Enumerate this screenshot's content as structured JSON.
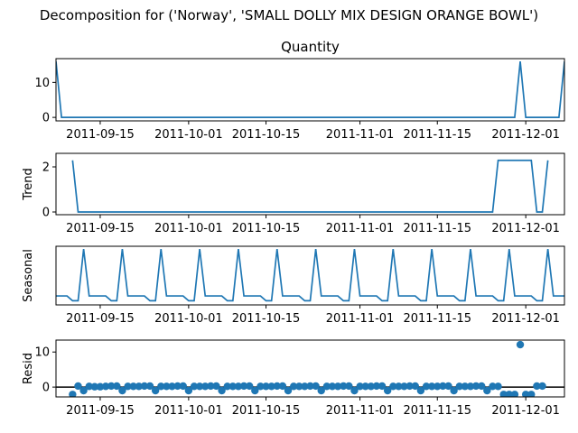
{
  "figure": {
    "suptitle": "Decomposition for ('Norway', 'SMALL DOLLY MIX DESIGN ORANGE BOWL')",
    "colors": {
      "series": "#1f77b4",
      "axis": "#000000",
      "zero_line": "#000000"
    }
  },
  "chart_data": [
    {
      "type": "line",
      "title": "Quantity",
      "ylabel": "",
      "ylim": [
        -1,
        16.8
      ],
      "yticks": [
        0,
        10
      ],
      "xtick_labels": [
        "2011-09-15",
        "2011-10-01",
        "2011-10-15",
        "2011-11-01",
        "2011-11-15",
        "2011-12-01"
      ],
      "xtick_dates": [
        "2011-09-15",
        "2011-10-01",
        "2011-10-15",
        "2011-11-01",
        "2011-11-15",
        "2011-12-01"
      ],
      "x": [
        "2011-09-07",
        "2011-09-08",
        "2011-11-29",
        "2011-11-30",
        "2011-12-01",
        "2011-12-07",
        "2011-12-08"
      ],
      "values": [
        16,
        0,
        0,
        16,
        0,
        0,
        16
      ]
    },
    {
      "type": "line",
      "title": "",
      "ylabel": "Trend",
      "ylim": [
        -0.12,
        2.6
      ],
      "yticks": [
        0,
        2
      ],
      "xtick_labels": [
        "2011-09-15",
        "2011-10-01",
        "2011-10-15",
        "2011-11-01",
        "2011-11-15",
        "2011-12-01"
      ],
      "xtick_dates": [
        "2011-09-15",
        "2011-10-01",
        "2011-10-15",
        "2011-11-01",
        "2011-11-15",
        "2011-12-01"
      ],
      "x": [
        "2011-09-10",
        "2011-09-11",
        "2011-11-25",
        "2011-11-26",
        "2011-12-02",
        "2011-12-03",
        "2011-12-04",
        "2011-12-05"
      ],
      "values": [
        2.29,
        0,
        0,
        2.29,
        2.29,
        0,
        0,
        2.29
      ]
    },
    {
      "type": "line",
      "title": "",
      "ylabel": "Seasonal",
      "ylim": [
        -0.42,
        1.28
      ],
      "yticks": [],
      "xtick_labels": [
        "2011-09-15",
        "2011-10-01",
        "2011-10-15",
        "2011-11-01",
        "2011-11-15",
        "2011-12-01"
      ],
      "xtick_dates": [
        "2011-09-15",
        "2011-10-01",
        "2011-10-15",
        "2011-11-01",
        "2011-11-15",
        "2011-12-01"
      ],
      "season_start": "2011-09-07",
      "season_period": 7,
      "season_pattern": [
        -0.16,
        -0.16,
        -0.16,
        -0.3,
        -0.3,
        1.2,
        -0.16
      ]
    },
    {
      "type": "scatter",
      "title": "",
      "ylabel": "Resid",
      "ylim": [
        -2.8,
        13.4
      ],
      "yticks": [
        0,
        10
      ],
      "zero_line": true,
      "xtick_labels": [
        "2011-09-15",
        "2011-10-01",
        "2011-10-15",
        "2011-11-01",
        "2011-11-15",
        "2011-12-01"
      ],
      "xtick_dates": [
        "2011-09-15",
        "2011-10-01",
        "2011-10-15",
        "2011-11-01",
        "2011-11-15",
        "2011-12-01"
      ],
      "x": [
        "2011-09-10",
        "2011-09-11",
        "2011-09-12",
        "2011-09-13",
        "2011-09-14",
        "2011-09-15",
        "2011-09-16",
        "2011-09-17",
        "2011-09-18",
        "2011-09-19",
        "2011-09-20",
        "2011-09-21",
        "2011-09-22",
        "2011-09-23",
        "2011-09-24",
        "2011-09-25",
        "2011-09-26",
        "2011-09-27",
        "2011-09-28",
        "2011-09-29",
        "2011-09-30",
        "2011-10-01",
        "2011-10-02",
        "2011-10-03",
        "2011-10-04",
        "2011-10-05",
        "2011-10-06",
        "2011-10-07",
        "2011-10-08",
        "2011-10-09",
        "2011-10-10",
        "2011-10-11",
        "2011-10-12",
        "2011-10-13",
        "2011-10-14",
        "2011-10-15",
        "2011-10-16",
        "2011-10-17",
        "2011-10-18",
        "2011-10-19",
        "2011-10-20",
        "2011-10-21",
        "2011-10-22",
        "2011-10-23",
        "2011-10-24",
        "2011-10-25",
        "2011-10-26",
        "2011-10-27",
        "2011-10-28",
        "2011-10-29",
        "2011-10-30",
        "2011-10-31",
        "2011-11-01",
        "2011-11-02",
        "2011-11-03",
        "2011-11-04",
        "2011-11-05",
        "2011-11-06",
        "2011-11-07",
        "2011-11-08",
        "2011-11-09",
        "2011-11-10",
        "2011-11-11",
        "2011-11-12",
        "2011-11-13",
        "2011-11-14",
        "2011-11-15",
        "2011-11-16",
        "2011-11-17",
        "2011-11-18",
        "2011-11-19",
        "2011-11-20",
        "2011-11-21",
        "2011-11-22",
        "2011-11-23",
        "2011-11-24",
        "2011-11-25",
        "2011-11-26",
        "2011-11-27",
        "2011-11-28",
        "2011-11-29",
        "2011-11-30",
        "2011-12-01",
        "2011-12-02",
        "2011-12-03",
        "2011-12-04"
      ],
      "values": [
        -2.1,
        0.3,
        -1.0,
        0.2,
        0.1,
        0.1,
        0.2,
        0.3,
        0.3,
        -1.0,
        0.2,
        0.2,
        0.2,
        0.3,
        0.3,
        -1.0,
        0.2,
        0.2,
        0.2,
        0.3,
        0.3,
        -1.0,
        0.2,
        0.2,
        0.2,
        0.3,
        0.3,
        -1.0,
        0.2,
        0.2,
        0.2,
        0.3,
        0.3,
        -1.0,
        0.2,
        0.2,
        0.2,
        0.3,
        0.3,
        -1.0,
        0.2,
        0.2,
        0.2,
        0.3,
        0.3,
        -1.0,
        0.2,
        0.2,
        0.2,
        0.3,
        0.3,
        -1.0,
        0.2,
        0.2,
        0.2,
        0.3,
        0.3,
        -1.0,
        0.2,
        0.2,
        0.2,
        0.3,
        0.3,
        -1.0,
        0.2,
        0.2,
        0.2,
        0.3,
        0.3,
        -1.0,
        0.2,
        0.2,
        0.2,
        0.3,
        0.3,
        -1.0,
        0.2,
        0.2,
        -2.1,
        -2.1,
        -2.1,
        12.1,
        -2.1,
        -2.1,
        0.3,
        0.3
      ]
    }
  ]
}
